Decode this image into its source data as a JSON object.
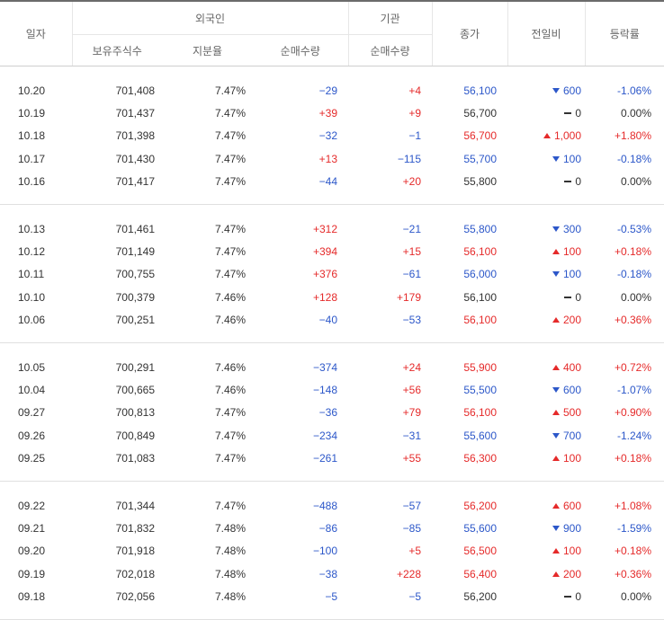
{
  "header": {
    "date": "일자",
    "foreign": "외국인",
    "institution": "기관",
    "close": "종가",
    "change": "전일비",
    "rate": "등락률",
    "holdings": "보유주식수",
    "ratio": "지분율",
    "foreign_net": "순매수량",
    "inst_net": "순매수량"
  },
  "colors": {
    "up": "#e52a2a",
    "down": "#2c57c9",
    "flat": "#333333"
  },
  "groups": [
    [
      {
        "date": "10.20",
        "holdings": "701,408",
        "ratio": "7.47%",
        "fnet": "−29",
        "fdir": "down",
        "inet": "+4",
        "idir": "up",
        "close": "56,100",
        "cdir": "down",
        "change": "600",
        "chg": "down",
        "rate": "-1.06%",
        "rdir": "down"
      },
      {
        "date": "10.19",
        "holdings": "701,437",
        "ratio": "7.47%",
        "fnet": "+39",
        "fdir": "up",
        "inet": "+9",
        "idir": "up",
        "close": "56,700",
        "cdir": "flat",
        "change": "0",
        "chg": "flat",
        "rate": "0.00%",
        "rdir": "flat"
      },
      {
        "date": "10.18",
        "holdings": "701,398",
        "ratio": "7.47%",
        "fnet": "−32",
        "fdir": "down",
        "inet": "−1",
        "idir": "down",
        "close": "56,700",
        "cdir": "up",
        "change": "1,000",
        "chg": "up",
        "rate": "+1.80%",
        "rdir": "up"
      },
      {
        "date": "10.17",
        "holdings": "701,430",
        "ratio": "7.47%",
        "fnet": "+13",
        "fdir": "up",
        "inet": "−115",
        "idir": "down",
        "close": "55,700",
        "cdir": "down",
        "change": "100",
        "chg": "down",
        "rate": "-0.18%",
        "rdir": "down"
      },
      {
        "date": "10.16",
        "holdings": "701,417",
        "ratio": "7.47%",
        "fnet": "−44",
        "fdir": "down",
        "inet": "+20",
        "idir": "up",
        "close": "55,800",
        "cdir": "flat",
        "change": "0",
        "chg": "flat",
        "rate": "0.00%",
        "rdir": "flat"
      }
    ],
    [
      {
        "date": "10.13",
        "holdings": "701,461",
        "ratio": "7.47%",
        "fnet": "+312",
        "fdir": "up",
        "inet": "−21",
        "idir": "down",
        "close": "55,800",
        "cdir": "down",
        "change": "300",
        "chg": "down",
        "rate": "-0.53%",
        "rdir": "down"
      },
      {
        "date": "10.12",
        "holdings": "701,149",
        "ratio": "7.47%",
        "fnet": "+394",
        "fdir": "up",
        "inet": "+15",
        "idir": "up",
        "close": "56,100",
        "cdir": "up",
        "change": "100",
        "chg": "up",
        "rate": "+0.18%",
        "rdir": "up"
      },
      {
        "date": "10.11",
        "holdings": "700,755",
        "ratio": "7.47%",
        "fnet": "+376",
        "fdir": "up",
        "inet": "−61",
        "idir": "down",
        "close": "56,000",
        "cdir": "down",
        "change": "100",
        "chg": "down",
        "rate": "-0.18%",
        "rdir": "down"
      },
      {
        "date": "10.10",
        "holdings": "700,379",
        "ratio": "7.46%",
        "fnet": "+128",
        "fdir": "up",
        "inet": "+179",
        "idir": "up",
        "close": "56,100",
        "cdir": "flat",
        "change": "0",
        "chg": "flat",
        "rate": "0.00%",
        "rdir": "flat"
      },
      {
        "date": "10.06",
        "holdings": "700,251",
        "ratio": "7.46%",
        "fnet": "−40",
        "fdir": "down",
        "inet": "−53",
        "idir": "down",
        "close": "56,100",
        "cdir": "up",
        "change": "200",
        "chg": "up",
        "rate": "+0.36%",
        "rdir": "up"
      }
    ],
    [
      {
        "date": "10.05",
        "holdings": "700,291",
        "ratio": "7.46%",
        "fnet": "−374",
        "fdir": "down",
        "inet": "+24",
        "idir": "up",
        "close": "55,900",
        "cdir": "up",
        "change": "400",
        "chg": "up",
        "rate": "+0.72%",
        "rdir": "up"
      },
      {
        "date": "10.04",
        "holdings": "700,665",
        "ratio": "7.46%",
        "fnet": "−148",
        "fdir": "down",
        "inet": "+56",
        "idir": "up",
        "close": "55,500",
        "cdir": "down",
        "change": "600",
        "chg": "down",
        "rate": "-1.07%",
        "rdir": "down"
      },
      {
        "date": "09.27",
        "holdings": "700,813",
        "ratio": "7.47%",
        "fnet": "−36",
        "fdir": "down",
        "inet": "+79",
        "idir": "up",
        "close": "56,100",
        "cdir": "up",
        "change": "500",
        "chg": "up",
        "rate": "+0.90%",
        "rdir": "up"
      },
      {
        "date": "09.26",
        "holdings": "700,849",
        "ratio": "7.47%",
        "fnet": "−234",
        "fdir": "down",
        "inet": "−31",
        "idir": "down",
        "close": "55,600",
        "cdir": "down",
        "change": "700",
        "chg": "down",
        "rate": "-1.24%",
        "rdir": "down"
      },
      {
        "date": "09.25",
        "holdings": "701,083",
        "ratio": "7.47%",
        "fnet": "−261",
        "fdir": "down",
        "inet": "+55",
        "idir": "up",
        "close": "56,300",
        "cdir": "up",
        "change": "100",
        "chg": "up",
        "rate": "+0.18%",
        "rdir": "up"
      }
    ],
    [
      {
        "date": "09.22",
        "holdings": "701,344",
        "ratio": "7.47%",
        "fnet": "−488",
        "fdir": "down",
        "inet": "−57",
        "idir": "down",
        "close": "56,200",
        "cdir": "up",
        "change": "600",
        "chg": "up",
        "rate": "+1.08%",
        "rdir": "up"
      },
      {
        "date": "09.21",
        "holdings": "701,832",
        "ratio": "7.48%",
        "fnet": "−86",
        "fdir": "down",
        "inet": "−85",
        "idir": "down",
        "close": "55,600",
        "cdir": "down",
        "change": "900",
        "chg": "down",
        "rate": "-1.59%",
        "rdir": "down"
      },
      {
        "date": "09.20",
        "holdings": "701,918",
        "ratio": "7.48%",
        "fnet": "−100",
        "fdir": "down",
        "inet": "+5",
        "idir": "up",
        "close": "56,500",
        "cdir": "up",
        "change": "100",
        "chg": "up",
        "rate": "+0.18%",
        "rdir": "up"
      },
      {
        "date": "09.19",
        "holdings": "702,018",
        "ratio": "7.48%",
        "fnet": "−38",
        "fdir": "down",
        "inet": "+228",
        "idir": "up",
        "close": "56,400",
        "cdir": "up",
        "change": "200",
        "chg": "up",
        "rate": "+0.36%",
        "rdir": "up"
      },
      {
        "date": "09.18",
        "holdings": "702,056",
        "ratio": "7.48%",
        "fnet": "−5",
        "fdir": "down",
        "inet": "−5",
        "idir": "down",
        "close": "56,200",
        "cdir": "flat",
        "change": "0",
        "chg": "flat",
        "rate": "0.00%",
        "rdir": "flat"
      }
    ]
  ]
}
